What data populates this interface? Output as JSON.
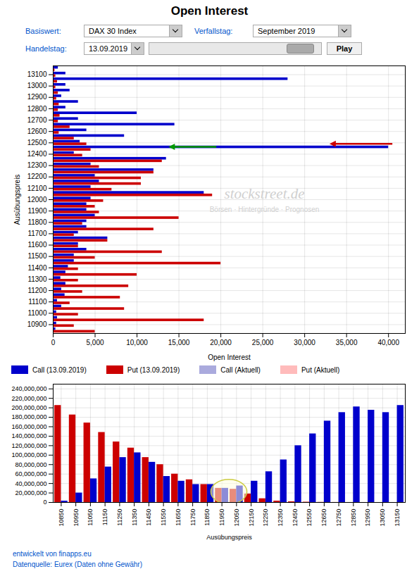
{
  "title": "Open Interest",
  "controls": [
    {
      "label": "Basiswert:",
      "value": "DAX 30 Index"
    },
    {
      "label": "Verfallstag:",
      "value": "September 2019"
    },
    {
      "label": "Handelstag:",
      "value": "13.09.2019"
    }
  ],
  "button": "Play",
  "label_color": "#0055cc",
  "legend_extra": [
    {
      "name": "Call (Aktuell)",
      "color": "#aaaadd"
    },
    {
      "name": "Put (Aktuell)",
      "color": "#ffbbbb"
    }
  ],
  "footer": [
    "entwickelt von finapps.eu",
    "Datenquelle: Eurex (Daten ohne Gewähr)"
  ],
  "chart_data": [
    {
      "type": "bar",
      "orientation": "horizontal",
      "categories": [
        null,
        "13100",
        null,
        "13000",
        null,
        "12900",
        null,
        "12800",
        null,
        "12700",
        null,
        "12600",
        null,
        "12500",
        null,
        "12400",
        null,
        "12300",
        null,
        "12200",
        null,
        "12100",
        null,
        "12000",
        null,
        "11900",
        null,
        "11800",
        null,
        "11700",
        null,
        "11600",
        null,
        "11500",
        null,
        "11400",
        null,
        "11300",
        null,
        "11200",
        null,
        "11100",
        null,
        "11000",
        null,
        "10900",
        null
      ],
      "series": [
        {
          "name": "Call (13.09.2019)",
          "color": "#0000cc",
          "values": [
            600,
            1500,
            28000,
            1500,
            2000,
            1000,
            3000,
            1500,
            10000,
            3000,
            14500,
            4000,
            8500,
            3200,
            40000,
            2500,
            13500,
            4500,
            12000,
            5000,
            5500,
            4500,
            18000,
            4500,
            4000,
            4000,
            5000,
            4000,
            4000,
            3000,
            6500,
            3000,
            4000,
            2500,
            2500,
            1800,
            1500,
            900,
            1500,
            1000,
            1400,
            500,
            1000,
            400,
            500,
            400,
            300
          ]
        },
        {
          "name": "Put (13.09.2019)",
          "color": "#cc0000",
          "values": [
            200,
            300,
            500,
            300,
            600,
            400,
            700,
            600,
            800,
            600,
            2000,
            700,
            2500,
            4000,
            4500,
            3500,
            13000,
            5500,
            12000,
            10500,
            10500,
            7000,
            19000,
            6000,
            5000,
            5500,
            15000,
            3500,
            12000,
            2500,
            6500,
            3000,
            13000,
            5000,
            20000,
            3000,
            10000,
            3000,
            9000,
            3500,
            8000,
            2000,
            8500,
            3000,
            18000,
            2500,
            5000
          ]
        }
      ],
      "xlabel": "Open Interest",
      "ylabel": "Ausübungspreis",
      "xlim": [
        0,
        42000
      ],
      "xticks": [
        0,
        {
          "value": 5000,
          "label": "5,000"
        },
        {
          "value": 10000,
          "label": "10,000"
        },
        {
          "value": 15000,
          "label": "15,000"
        },
        {
          "value": 20000,
          "label": "20,000"
        },
        {
          "value": 25000,
          "label": "25,000"
        },
        {
          "value": 30000,
          "label": "30,000"
        },
        {
          "value": 35000,
          "label": "35,000"
        },
        {
          "value": 40000,
          "label": "40,000"
        }
      ],
      "grid": true,
      "arrows": [
        {
          "row": 13,
          "series": "Put (13.09.2019)",
          "from": 40500,
          "to": 33000,
          "color": "#cc0000"
        },
        {
          "row": 14,
          "series": "Call (13.09.2019)",
          "from": 19500,
          "to": 13800,
          "color": "#009900"
        }
      ],
      "annotations": [
        {
          "text": "stockstreet.de",
          "color": "#d0d0d0"
        },
        {
          "text": "Börsen · Hintergründe · Prognosen",
          "color": "#d0d0d0"
        }
      ]
    },
    {
      "type": "bar",
      "categories": [
        "10850",
        "10950",
        "11050",
        "11150",
        "11250",
        "11350",
        "11450",
        "11550",
        "11650",
        "11750",
        "11850",
        "11950",
        "12050",
        "12150",
        "12250",
        "12350",
        "12450",
        "12550",
        "12650",
        "12750",
        "12850",
        "12950",
        "13050",
        "13150"
      ],
      "series": [
        {
          "name": "Put (13.09.2019)",
          "color": "#cc0000",
          "values": [
            205000000,
            185000000,
            168000000,
            148000000,
            128000000,
            115000000,
            95000000,
            80000000,
            60000000,
            48000000,
            38000000,
            30000000,
            28000000,
            18000000,
            8000000,
            3000000,
            1500000,
            700000,
            300000,
            120000,
            60000,
            30000,
            12000,
            5000
          ]
        },
        {
          "name": "Call (13.09.2019)",
          "color": "#0000cc",
          "values": [
            3000000,
            20000000,
            50000000,
            75000000,
            95000000,
            105000000,
            85000000,
            55000000,
            45000000,
            38000000,
            38000000,
            30000000,
            35000000,
            45000000,
            65000000,
            90000000,
            120000000,
            145000000,
            172000000,
            190000000,
            202000000,
            195000000,
            190000000,
            205000000
          ]
        }
      ],
      "xlabel": "Ausübungspreis",
      "ylim": [
        0,
        250000000
      ],
      "yticks": [
        0,
        {
          "value": 20000000,
          "label": "20,000,000"
        },
        {
          "value": 40000000,
          "label": "40,000,000"
        },
        {
          "value": 60000000,
          "label": "60,000,000"
        },
        {
          "value": 80000000,
          "label": "80,000,000"
        },
        {
          "value": 100000000,
          "label": "100,000,000"
        },
        {
          "value": 120000000,
          "label": "120,000,000"
        },
        {
          "value": 140000000,
          "label": "140,000,000"
        },
        {
          "value": 160000000,
          "label": "160,000,000"
        },
        {
          "value": 180000000,
          "label": "180,000,000"
        },
        {
          "value": 200000000,
          "label": "200,000,000"
        },
        {
          "value": 220000000,
          "label": "220,000,000"
        },
        {
          "value": 240000000,
          "label": "240,000,000"
        }
      ],
      "grid": true,
      "highlight": {
        "categories": [
          "11950",
          "12050"
        ],
        "y": 22000000,
        "height": 52000000,
        "color": "#cccc44"
      }
    }
  ]
}
